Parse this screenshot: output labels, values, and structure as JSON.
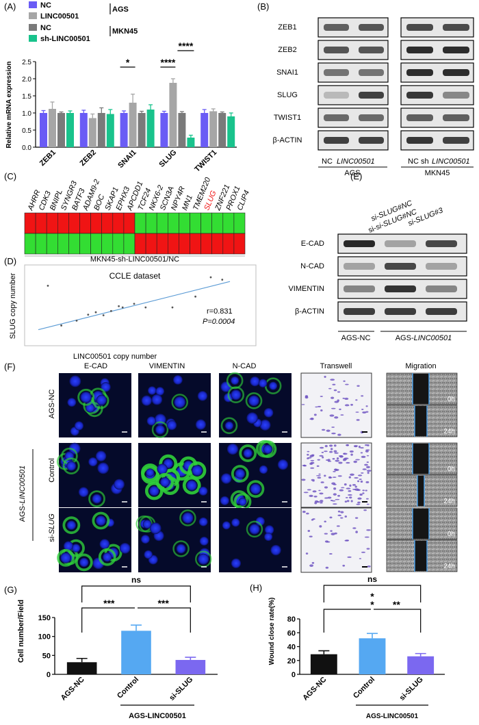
{
  "panel_labels": {
    "A": "(A)",
    "B": "(B)",
    "C": "(C)",
    "D": "(D)",
    "E": "(E)",
    "F": "(F)",
    "G": "(G)",
    "H": "(H)"
  },
  "colors": {
    "nc": "#6a5cf5",
    "linc": "#a6a6a6",
    "nc2": "#7a7a7a",
    "sh": "#19c38c",
    "red": "#f01414",
    "green": "#33dd33",
    "fluor_bg": "#050a2a",
    "g_black": "#111111",
    "g_blue": "#55a8f2",
    "g_purple": "#7b68f0"
  },
  "panel_a": {
    "legend": [
      {
        "label": "NC",
        "color": "#6a5cf5"
      },
      {
        "label": "LINC00501",
        "color": "#a6a6a6"
      },
      {
        "label": "NC",
        "color": "#7a7a7a"
      },
      {
        "label": "sh-LINC00501",
        "color": "#19c38c"
      }
    ],
    "group_ags": "AGS",
    "group_mkn": "MKN45",
    "sig": [
      "*",
      "****",
      "****"
    ]
  },
  "chart_data": [
    {
      "type": "bar",
      "title": "",
      "ylabel": "Relative mRNA expression",
      "ylim": [
        0,
        2.5
      ],
      "yticks": [
        "0.0",
        "0.5",
        "1.0",
        "1.5",
        "2.0",
        "2.5"
      ],
      "categories": [
        "ZEB1",
        "ZEB2",
        "SNAI1",
        "SLUG",
        "TWIST1"
      ],
      "series": [
        {
          "name": "NC",
          "values": [
            1.0,
            1.0,
            1.0,
            1.0,
            1.0
          ],
          "err": [
            0.07,
            0.08,
            0.06,
            0.05,
            0.1
          ]
        },
        {
          "name": "LINC00501",
          "values": [
            1.12,
            0.85,
            1.3,
            1.88,
            1.05
          ],
          "err": [
            0.2,
            0.12,
            0.25,
            0.12,
            0.07
          ]
        },
        {
          "name": "NC",
          "values": [
            1.0,
            1.0,
            1.0,
            1.0,
            1.0
          ],
          "err": [
            0.03,
            0.15,
            0.05,
            0.04,
            0.03
          ]
        },
        {
          "name": "sh-LINC00501",
          "values": [
            1.0,
            0.97,
            1.1,
            0.28,
            0.9
          ],
          "err": [
            0.06,
            0.13,
            0.14,
            0.07,
            0.1
          ]
        }
      ]
    },
    {
      "type": "scatter",
      "title": "CCLE dataset",
      "xlabel": "LINC00501 copy number",
      "ylabel": "SLUG copy number",
      "annotations": [
        "r=0.831",
        "P=0.0004"
      ],
      "points": [
        [
          0.05,
          0.78
        ],
        [
          0.12,
          0.12
        ],
        [
          0.2,
          0.2
        ],
        [
          0.26,
          0.3
        ],
        [
          0.3,
          0.34
        ],
        [
          0.34,
          0.29
        ],
        [
          0.38,
          0.36
        ],
        [
          0.42,
          0.44
        ],
        [
          0.44,
          0.42
        ],
        [
          0.5,
          0.48
        ],
        [
          0.56,
          0.42
        ],
        [
          0.7,
          0.42
        ],
        [
          0.9,
          0.92
        ],
        [
          0.96,
          0.88
        ],
        [
          0.82,
          0.6
        ]
      ]
    },
    {
      "type": "bar",
      "title": "",
      "ylabel": "Cell number/Field",
      "ylim": [
        0,
        150
      ],
      "yticks": [
        "0",
        "50",
        "100",
        "150"
      ],
      "categories": [
        "AGS-NC",
        "Control",
        "si-SLUG"
      ],
      "values": [
        32,
        115,
        38
      ],
      "err": [
        10,
        15,
        7
      ],
      "group_label": "AGS-LINC00501",
      "sig": [
        "***",
        "***",
        "ns"
      ]
    },
    {
      "type": "bar",
      "title": "",
      "ylabel": "Wound close rate(%)",
      "ylim": [
        0,
        80
      ],
      "yticks": [
        "0",
        "20",
        "40",
        "60",
        "80"
      ],
      "categories": [
        "AGS-NC",
        "Control",
        "si-SLUG"
      ],
      "values": [
        29,
        52,
        26
      ],
      "err": [
        5,
        7,
        4
      ],
      "group_label": "AGS-LINC00501",
      "sig": [
        "*",
        "*",
        "**",
        "ns"
      ]
    }
  ],
  "panel_b": {
    "rows": [
      "ZEB1",
      "ZEB2",
      "SNAI1",
      "SLUG",
      "TWIST1",
      "β-ACTIN"
    ],
    "lane_labels": [
      "NC",
      "LINC00501",
      "NC",
      "sh",
      "LINC00501"
    ],
    "cells": [
      "AGS",
      "MKN45"
    ]
  },
  "panel_c": {
    "genes": [
      "AHRR",
      "CDK3",
      "BNIPL",
      "SYNGR3",
      "BATF3",
      "ADAM9-2",
      "BOC",
      "SKAP1",
      "EPHX3",
      "APCDD1",
      "TCF24",
      "NKX6-2",
      "SCN3A",
      "NPY4R",
      "MN1",
      "TMEM220",
      "SLUG",
      "ZNF221",
      "PROX1",
      "CLIP4"
    ],
    "caption": "MKN45-sh-LINC00501/NC"
  },
  "panel_e": {
    "lanes": [
      "si-SLUG#NC",
      "si-SLUG#NC",
      "si-SLUG#3"
    ],
    "rows": [
      "E-CAD",
      "N-CAD",
      "VIMENTIN",
      "β-ACTIN"
    ],
    "bottom_left": "AGS-NC",
    "bottom_right_prefix": "AGS-",
    "bottom_right_italic": "LINC00501"
  },
  "panel_f": {
    "cols": [
      "E-CAD",
      "VIMENTIN",
      "N-CAD",
      "Transwell",
      "Migration"
    ],
    "row1": "AGS-NC",
    "row_group_prefix": "AGS-",
    "row_group_italic": "LINC00501",
    "row2": "Control",
    "row3_prefix": "si-",
    "row3_italic": "SLUG",
    "times": [
      "0h",
      "24h",
      "0h",
      "24h",
      "0h",
      "24h"
    ]
  }
}
